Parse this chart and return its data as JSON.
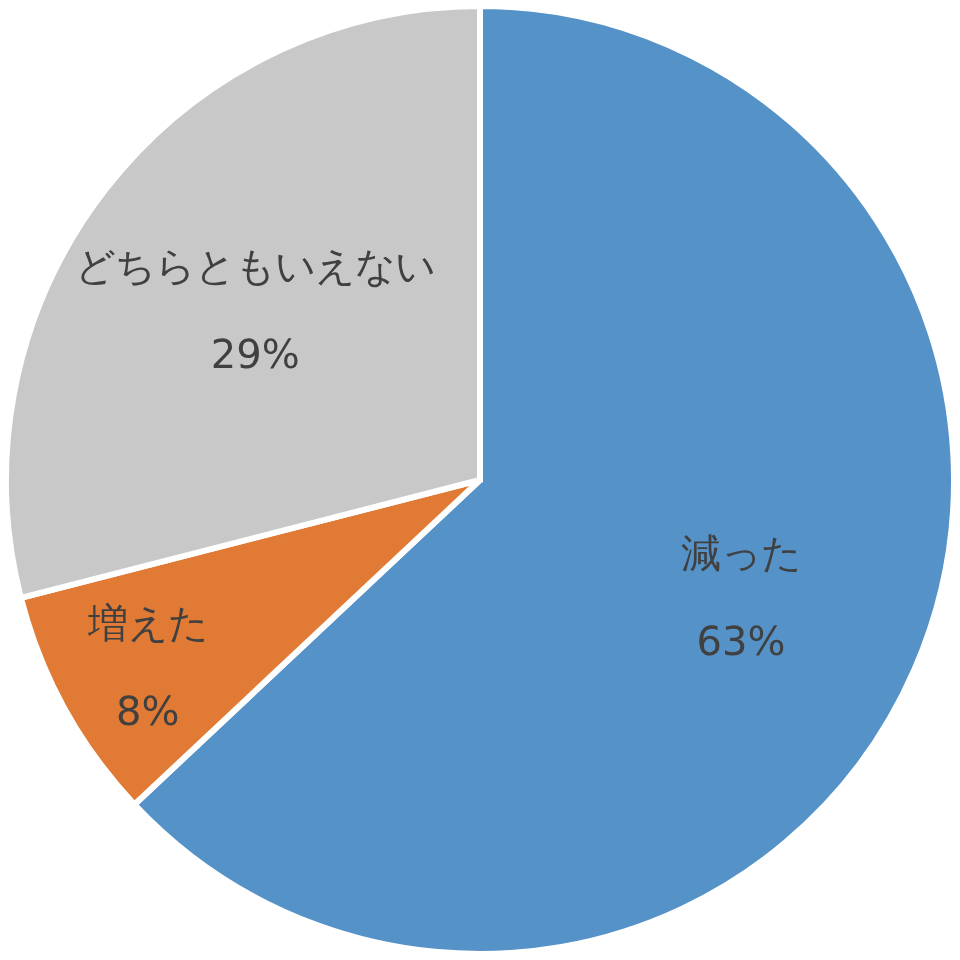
{
  "chart_data": {
    "type": "pie",
    "categories": [
      "減った",
      "増えた",
      "どちらともいえない"
    ],
    "values": [
      63,
      8,
      29
    ],
    "value_labels": [
      "63%",
      "8%",
      "29%"
    ],
    "colors": [
      "#5592c8",
      "#e07a34",
      "#c8c8c8"
    ]
  }
}
